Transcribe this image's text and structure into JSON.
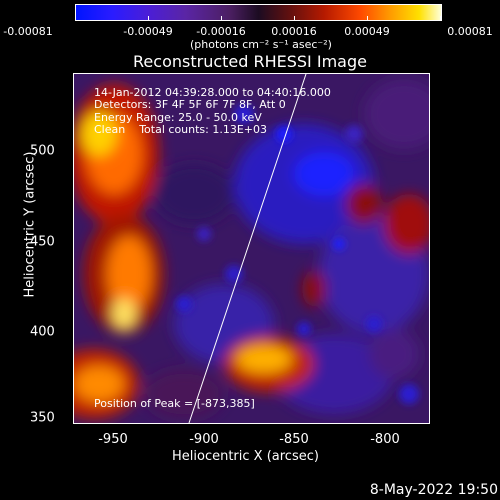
{
  "colorbar": {
    "ticks": [
      "-0.00081",
      "-0.00049",
      "-0.00016",
      "0.00016",
      "0.00049",
      "0.00081"
    ],
    "units": "(photons cm⁻² s⁻¹ asec⁻²)"
  },
  "title": "Reconstructed RHESSI Image",
  "info": {
    "time": "14-Jan-2012 04:39:28.000 to 04:40:16.000",
    "detectors": "Detectors: 3F 4F 5F 6F 7F 8F, Att 0",
    "energy": "Energy Range: 25.0 - 50.0 keV",
    "clean": "Clean    Total counts: 1.13E+03",
    "peak": "Position of Peak = [-873,385]"
  },
  "axes": {
    "xlabel": "Heliocentric X (arcsec)",
    "ylabel": "Heliocentric Y (arcsec)",
    "xticks": [
      "-950",
      "-900",
      "-850",
      "-800"
    ],
    "yticks": [
      "500",
      "450",
      "400",
      "350"
    ]
  },
  "footer": {
    "date": "8-May-2022 19:50"
  }
}
